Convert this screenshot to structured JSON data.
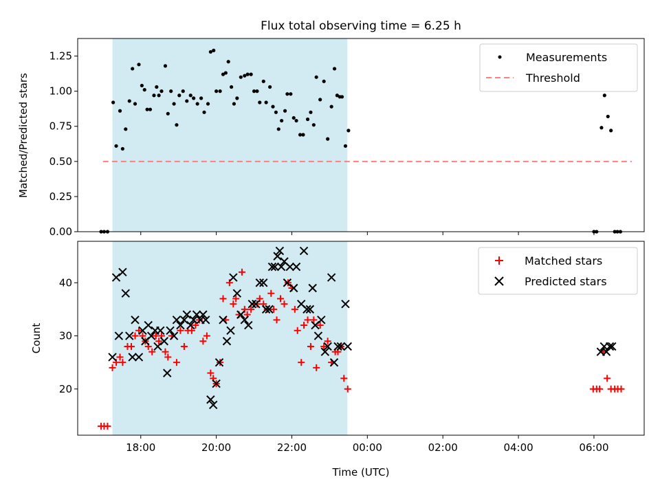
{
  "chart_data": [
    {
      "type": "scatter",
      "title": "Flux total observing time = 6.25 h",
      "ylabel": "Matched/Predicted stars",
      "xlabel": "",
      "x_unit": "hours since 00:00 UTC (values >24 are next day)",
      "xlim": [
        16.33,
        31.33
      ],
      "ylim": [
        0,
        1.375
      ],
      "yticks": [
        "0.00",
        "0.25",
        "0.50",
        "0.75",
        "1.00",
        "1.25"
      ],
      "ytick_values": [
        0,
        0.25,
        0.5,
        0.75,
        1.0,
        1.25
      ],
      "shaded_interval": [
        17.25,
        23.47
      ],
      "shade_color": "#add8e6",
      "legend_placement": "top-right",
      "threshold": {
        "name": "Threshold",
        "y": 0.5,
        "x_range": [
          17.0,
          31.0
        ],
        "color": "#ff7f7f"
      },
      "series": [
        {
          "name": "Measurements",
          "marker": "dot",
          "color": "#000000",
          "points": [
            [
              16.95,
              0.0
            ],
            [
              17.03,
              0.0
            ],
            [
              17.12,
              0.0
            ],
            [
              17.27,
              0.92
            ],
            [
              17.35,
              0.61
            ],
            [
              17.45,
              0.86
            ],
            [
              17.52,
              0.59
            ],
            [
              17.6,
              0.73
            ],
            [
              17.7,
              0.93
            ],
            [
              17.78,
              1.16
            ],
            [
              17.85,
              0.91
            ],
            [
              17.95,
              1.19
            ],
            [
              18.03,
              1.04
            ],
            [
              18.1,
              1.01
            ],
            [
              18.17,
              0.87
            ],
            [
              18.25,
              0.87
            ],
            [
              18.35,
              0.97
            ],
            [
              18.42,
              1.03
            ],
            [
              18.48,
              0.97
            ],
            [
              18.55,
              1.0
            ],
            [
              18.65,
              1.18
            ],
            [
              18.72,
              0.84
            ],
            [
              18.8,
              1.0
            ],
            [
              18.88,
              0.91
            ],
            [
              18.95,
              0.76
            ],
            [
              19.02,
              0.97
            ],
            [
              19.12,
              1.0
            ],
            [
              19.22,
              0.93
            ],
            [
              19.32,
              0.97
            ],
            [
              19.4,
              0.95
            ],
            [
              19.5,
              0.91
            ],
            [
              19.6,
              0.95
            ],
            [
              19.68,
              0.85
            ],
            [
              19.78,
              0.91
            ],
            [
              19.85,
              1.28
            ],
            [
              19.93,
              1.29
            ],
            [
              20.0,
              1.0
            ],
            [
              20.1,
              1.0
            ],
            [
              20.18,
              1.12
            ],
            [
              20.25,
              1.13
            ],
            [
              20.32,
              1.21
            ],
            [
              20.4,
              1.03
            ],
            [
              20.47,
              0.91
            ],
            [
              20.55,
              0.95
            ],
            [
              20.65,
              1.1
            ],
            [
              20.75,
              1.11
            ],
            [
              20.83,
              1.12
            ],
            [
              20.92,
              1.12
            ],
            [
              21.0,
              1.0
            ],
            [
              21.08,
              1.0
            ],
            [
              21.15,
              0.92
            ],
            [
              21.25,
              1.07
            ],
            [
              21.32,
              0.92
            ],
            [
              21.42,
              1.03
            ],
            [
              21.5,
              0.89
            ],
            [
              21.58,
              0.85
            ],
            [
              21.65,
              0.73
            ],
            [
              21.73,
              0.79
            ],
            [
              21.82,
              0.86
            ],
            [
              21.88,
              0.98
            ],
            [
              21.97,
              0.98
            ],
            [
              22.05,
              0.81
            ],
            [
              22.12,
              0.79
            ],
            [
              22.22,
              0.69
            ],
            [
              22.3,
              0.69
            ],
            [
              22.42,
              0.8
            ],
            [
              22.5,
              0.85
            ],
            [
              22.58,
              0.76
            ],
            [
              22.65,
              1.1
            ],
            [
              22.75,
              0.94
            ],
            [
              22.85,
              1.07
            ],
            [
              22.95,
              0.66
            ],
            [
              23.05,
              0.89
            ],
            [
              23.13,
              1.16
            ],
            [
              23.2,
              0.97
            ],
            [
              23.27,
              0.96
            ],
            [
              23.33,
              0.96
            ],
            [
              23.42,
              0.61
            ],
            [
              23.5,
              0.72
            ],
            [
              30.0,
              0.0
            ],
            [
              30.07,
              0.0
            ],
            [
              30.2,
              0.74
            ],
            [
              30.28,
              0.97
            ],
            [
              30.37,
              0.82
            ],
            [
              30.45,
              0.72
            ],
            [
              30.55,
              0.0
            ],
            [
              30.62,
              0.0
            ],
            [
              30.7,
              0.0
            ]
          ]
        }
      ]
    },
    {
      "type": "scatter",
      "title": "",
      "ylabel": "Count",
      "xlabel": "Time (UTC)",
      "x_unit": "hours since 00:00 UTC (values >24 are next day)",
      "xlim": [
        16.33,
        31.33
      ],
      "ylim": [
        11.3,
        47.8
      ],
      "yticks": [
        "20",
        "30",
        "40"
      ],
      "ytick_values": [
        20,
        30,
        40
      ],
      "xticks": [
        "18:00",
        "20:00",
        "22:00",
        "00:00",
        "02:00",
        "04:00",
        "06:00"
      ],
      "xtick_values": [
        18,
        20,
        22,
        24,
        26,
        28,
        30
      ],
      "shaded_interval": [
        17.25,
        23.47
      ],
      "shade_color": "#add8e6",
      "legend_placement": "top-right",
      "series": [
        {
          "name": "Matched stars",
          "marker": "plus",
          "color": "#ff0000",
          "points": [
            [
              16.95,
              13
            ],
            [
              17.03,
              13
            ],
            [
              17.12,
              13
            ],
            [
              17.25,
              24
            ],
            [
              17.35,
              25
            ],
            [
              17.45,
              26
            ],
            [
              17.52,
              25
            ],
            [
              17.65,
              28
            ],
            [
              17.75,
              28
            ],
            [
              17.85,
              30
            ],
            [
              17.95,
              31
            ],
            [
              18.05,
              30
            ],
            [
              18.12,
              29
            ],
            [
              18.2,
              28
            ],
            [
              18.3,
              27
            ],
            [
              18.4,
              30
            ],
            [
              18.48,
              29
            ],
            [
              18.55,
              30
            ],
            [
              18.65,
              27
            ],
            [
              18.72,
              26
            ],
            [
              18.82,
              30
            ],
            [
              18.95,
              25
            ],
            [
              19.05,
              31
            ],
            [
              19.15,
              28
            ],
            [
              19.25,
              31
            ],
            [
              19.35,
              31
            ],
            [
              19.45,
              32
            ],
            [
              19.55,
              33
            ],
            [
              19.65,
              29
            ],
            [
              19.75,
              30
            ],
            [
              19.85,
              23
            ],
            [
              19.92,
              22
            ],
            [
              20.0,
              21
            ],
            [
              20.1,
              25
            ],
            [
              20.18,
              37
            ],
            [
              20.25,
              33
            ],
            [
              20.35,
              40
            ],
            [
              20.45,
              36
            ],
            [
              20.52,
              37
            ],
            [
              20.6,
              34
            ],
            [
              20.68,
              42
            ],
            [
              20.75,
              35
            ],
            [
              20.82,
              34
            ],
            [
              20.92,
              35
            ],
            [
              21.0,
              36
            ],
            [
              21.08,
              36
            ],
            [
              21.15,
              37
            ],
            [
              21.25,
              36
            ],
            [
              21.35,
              35
            ],
            [
              21.45,
              38
            ],
            [
              21.52,
              35
            ],
            [
              21.6,
              33
            ],
            [
              21.7,
              37
            ],
            [
              21.8,
              36
            ],
            [
              21.9,
              40
            ],
            [
              22.0,
              39
            ],
            [
              22.08,
              35
            ],
            [
              22.15,
              31
            ],
            [
              22.25,
              25
            ],
            [
              22.32,
              32
            ],
            [
              22.42,
              33
            ],
            [
              22.5,
              28
            ],
            [
              22.58,
              33
            ],
            [
              22.65,
              24
            ],
            [
              22.75,
              32
            ],
            [
              22.85,
              28
            ],
            [
              22.95,
              29
            ],
            [
              23.05,
              25
            ],
            [
              23.15,
              27
            ],
            [
              23.22,
              27
            ],
            [
              23.3,
              28
            ],
            [
              23.38,
              22
            ],
            [
              23.48,
              20
            ],
            [
              29.98,
              20
            ],
            [
              30.07,
              20
            ],
            [
              30.15,
              20
            ],
            [
              30.25,
              27
            ],
            [
              30.35,
              22
            ],
            [
              30.45,
              20
            ],
            [
              30.55,
              20
            ],
            [
              30.63,
              20
            ],
            [
              30.72,
              20
            ]
          ]
        },
        {
          "name": "Predicted stars",
          "marker": "x",
          "color": "#000000",
          "points": [
            [
              17.25,
              26
            ],
            [
              17.35,
              41
            ],
            [
              17.42,
              30
            ],
            [
              17.52,
              42
            ],
            [
              17.6,
              38
            ],
            [
              17.7,
              30
            ],
            [
              17.78,
              26
            ],
            [
              17.85,
              33
            ],
            [
              17.95,
              26
            ],
            [
              18.05,
              31
            ],
            [
              18.12,
              29
            ],
            [
              18.2,
              32
            ],
            [
              18.28,
              30
            ],
            [
              18.38,
              31
            ],
            [
              18.45,
              28
            ],
            [
              18.52,
              31
            ],
            [
              18.62,
              29
            ],
            [
              18.7,
              23
            ],
            [
              18.78,
              31
            ],
            [
              18.88,
              30
            ],
            [
              18.95,
              33
            ],
            [
              19.05,
              32
            ],
            [
              19.15,
              33
            ],
            [
              19.22,
              34
            ],
            [
              19.32,
              32
            ],
            [
              19.4,
              33
            ],
            [
              19.48,
              34
            ],
            [
              19.58,
              33
            ],
            [
              19.65,
              34
            ],
            [
              19.72,
              33
            ],
            [
              19.85,
              18
            ],
            [
              19.92,
              17
            ],
            [
              20.0,
              21
            ],
            [
              20.08,
              25
            ],
            [
              20.18,
              33
            ],
            [
              20.28,
              29
            ],
            [
              20.38,
              31
            ],
            [
              20.45,
              41
            ],
            [
              20.55,
              38
            ],
            [
              20.65,
              34
            ],
            [
              20.75,
              33
            ],
            [
              20.85,
              32
            ],
            [
              20.95,
              36
            ],
            [
              21.05,
              36
            ],
            [
              21.15,
              40
            ],
            [
              21.25,
              40
            ],
            [
              21.32,
              35
            ],
            [
              21.4,
              35
            ],
            [
              21.48,
              43
            ],
            [
              21.55,
              43
            ],
            [
              21.62,
              45
            ],
            [
              21.68,
              46
            ],
            [
              21.72,
              43
            ],
            [
              21.8,
              44
            ],
            [
              21.88,
              40
            ],
            [
              21.95,
              43
            ],
            [
              22.05,
              39
            ],
            [
              22.12,
              43
            ],
            [
              22.25,
              36
            ],
            [
              22.32,
              46
            ],
            [
              22.4,
              35
            ],
            [
              22.48,
              35
            ],
            [
              22.55,
              39
            ],
            [
              22.62,
              32
            ],
            [
              22.7,
              30
            ],
            [
              22.78,
              33
            ],
            [
              22.88,
              27
            ],
            [
              22.95,
              28
            ],
            [
              23.05,
              41
            ],
            [
              23.12,
              25
            ],
            [
              23.22,
              28
            ],
            [
              23.3,
              28
            ],
            [
              23.42,
              36
            ],
            [
              23.48,
              28
            ],
            [
              30.18,
              27
            ],
            [
              30.27,
              28
            ],
            [
              30.33,
              27
            ],
            [
              30.42,
              28
            ],
            [
              30.48,
              28
            ]
          ]
        }
      ]
    }
  ]
}
